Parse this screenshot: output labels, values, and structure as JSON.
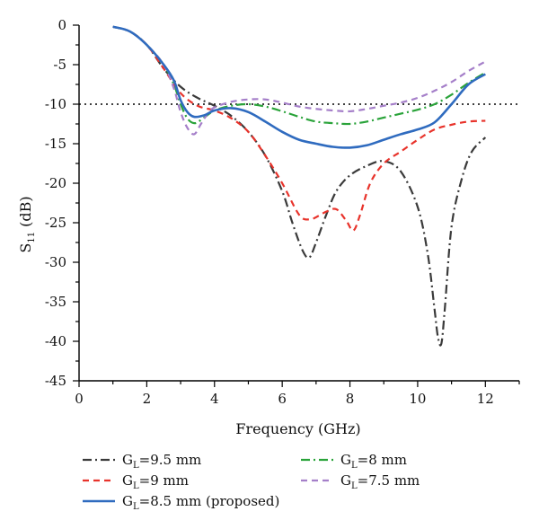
{
  "chart_data": {
    "type": "line",
    "title": "",
    "xlabel": "Frequency (GHz)",
    "ylabel_main": "S",
    "ylabel_sub": "11",
    "ylabel_unit": " (dB)",
    "xlim": [
      0,
      13
    ],
    "ylim": [
      -45,
      0
    ],
    "x_ticks": [
      0,
      2,
      4,
      6,
      8,
      10,
      12
    ],
    "y_ticks": [
      0,
      -5,
      -10,
      -15,
      -20,
      -25,
      -30,
      -35,
      -40,
      -45
    ],
    "reference_line": {
      "y": -10,
      "style": "dotted",
      "color": "#000000"
    },
    "grid": false,
    "legend_position": "bottom",
    "series": [
      {
        "label_prefix": "G",
        "label_sub": "L",
        "label_suffix": "=9.5 mm",
        "color": "#3a3a3a",
        "dash": "dashdot",
        "x": [
          1.0,
          1.5,
          2.0,
          2.5,
          3.0,
          3.5,
          4.0,
          4.5,
          5.0,
          5.5,
          6.0,
          6.3,
          6.6,
          6.8,
          7.0,
          7.3,
          7.6,
          8.0,
          8.5,
          9.0,
          9.5,
          10.0,
          10.3,
          10.5,
          10.6,
          10.7,
          10.8,
          11.0,
          11.3,
          11.6,
          12.0
        ],
        "y": [
          -0.2,
          -0.8,
          -2.5,
          -5.5,
          -7.8,
          -9.2,
          -10.2,
          -11.5,
          -13.5,
          -16.5,
          -21.0,
          -25.0,
          -28.5,
          -29.4,
          -27.5,
          -24.0,
          -21.0,
          -19.0,
          -17.8,
          -17.2,
          -18.5,
          -23.0,
          -29.0,
          -36.0,
          -39.5,
          -40.3,
          -36.0,
          -25.5,
          -19.5,
          -16.0,
          -14.2
        ]
      },
      {
        "label_prefix": "G",
        "label_sub": "L",
        "label_suffix": "=9 mm",
        "color": "#e8332b",
        "dash": "dashed",
        "x": [
          1.0,
          1.5,
          2.0,
          2.5,
          3.0,
          3.5,
          4.0,
          4.5,
          5.0,
          5.5,
          6.0,
          6.5,
          6.8,
          7.0,
          7.3,
          7.6,
          7.9,
          8.1,
          8.3,
          8.6,
          9.0,
          9.5,
          10.0,
          10.5,
          11.0,
          11.5,
          12.0
        ],
        "y": [
          -0.2,
          -0.8,
          -2.5,
          -5.5,
          -8.6,
          -10.2,
          -10.8,
          -11.8,
          -13.5,
          -16.5,
          -20.0,
          -24.0,
          -24.6,
          -24.3,
          -23.6,
          -23.3,
          -24.8,
          -26.0,
          -24.0,
          -20.0,
          -17.5,
          -16.0,
          -14.5,
          -13.2,
          -12.6,
          -12.2,
          -12.1
        ]
      },
      {
        "label_prefix": "G",
        "label_sub": "L",
        "label_suffix": "=8.5 mm (proposed)",
        "color": "#2f6bbf",
        "dash": "solid",
        "x": [
          1.0,
          1.5,
          2.0,
          2.5,
          2.8,
          3.0,
          3.2,
          3.4,
          3.7,
          4.0,
          4.5,
          5.0,
          5.5,
          6.0,
          6.5,
          7.0,
          7.5,
          8.0,
          8.5,
          9.0,
          9.5,
          10.0,
          10.5,
          11.0,
          11.5,
          12.0
        ],
        "y": [
          -0.2,
          -0.8,
          -2.5,
          -5.0,
          -7.0,
          -9.5,
          -11.0,
          -11.6,
          -11.4,
          -10.8,
          -10.5,
          -11.0,
          -12.2,
          -13.5,
          -14.5,
          -15.0,
          -15.4,
          -15.5,
          -15.2,
          -14.5,
          -13.8,
          -13.2,
          -12.3,
          -10.0,
          -7.5,
          -6.2
        ]
      },
      {
        "label_prefix": "G",
        "label_sub": "L",
        "label_suffix": "=8 mm",
        "color": "#2aa33a",
        "dash": "dashdot",
        "x": [
          1.0,
          1.5,
          2.0,
          2.5,
          2.8,
          3.0,
          3.2,
          3.4,
          3.6,
          4.0,
          4.5,
          5.0,
          5.5,
          6.0,
          6.5,
          7.0,
          7.5,
          8.0,
          8.5,
          9.0,
          9.5,
          10.0,
          10.5,
          11.0,
          11.5,
          12.0
        ],
        "y": [
          -0.2,
          -0.8,
          -2.5,
          -5.0,
          -7.5,
          -10.0,
          -11.8,
          -12.4,
          -12.0,
          -10.8,
          -10.2,
          -10.0,
          -10.3,
          -10.9,
          -11.6,
          -12.2,
          -12.4,
          -12.5,
          -12.2,
          -11.7,
          -11.2,
          -10.7,
          -10.0,
          -8.8,
          -7.3,
          -6.0
        ]
      },
      {
        "label_prefix": "G",
        "label_sub": "L",
        "label_suffix": "=7.5 mm",
        "color": "#a57fc9",
        "dash": "dashed",
        "x": [
          1.0,
          1.5,
          2.0,
          2.5,
          2.8,
          3.0,
          3.2,
          3.4,
          3.6,
          3.8,
          4.0,
          4.5,
          5.0,
          5.5,
          6.0,
          6.5,
          7.0,
          7.5,
          8.0,
          8.5,
          9.0,
          9.5,
          10.0,
          10.5,
          11.0,
          11.5,
          12.0
        ],
        "y": [
          -0.2,
          -0.8,
          -2.5,
          -5.0,
          -8.0,
          -11.0,
          -13.0,
          -13.8,
          -12.5,
          -11.2,
          -10.4,
          -9.7,
          -9.4,
          -9.4,
          -9.8,
          -10.3,
          -10.6,
          -10.8,
          -10.9,
          -10.6,
          -10.2,
          -9.8,
          -9.2,
          -8.3,
          -7.2,
          -5.8,
          -4.6
        ]
      }
    ]
  }
}
